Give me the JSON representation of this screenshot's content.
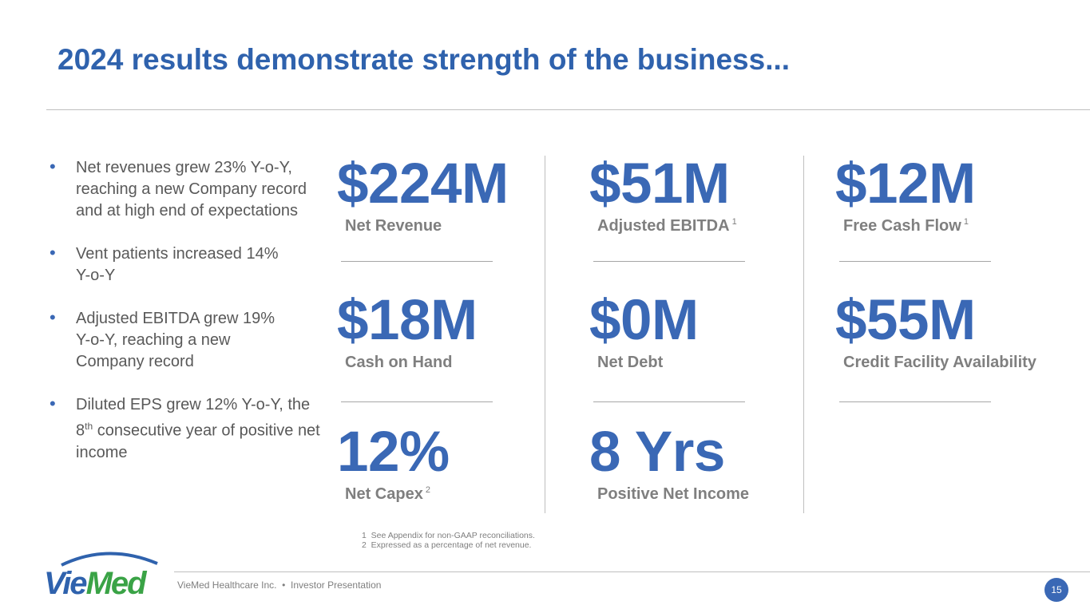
{
  "title": "2024 results demonstrate strength of the business...",
  "bullets": [
    {
      "text": "Net revenues grew 23% Y-o-Y, reaching a new Company record and at high end of expectations"
    },
    {
      "text": "Vent patients increased 14% Y-o-Y"
    },
    {
      "text": "Adjusted EBITDA grew 19% Y-o-Y, reaching a new Company record"
    },
    {
      "pre": "Diluted EPS grew 12% Y-o-Y, the 8",
      "sup": "th",
      "post": " consecutive year of positive net income"
    }
  ],
  "metrics": [
    {
      "value": "$224M",
      "label": "Net Revenue",
      "note": ""
    },
    {
      "value": "$51M",
      "label": "Adjusted EBITDA",
      "note": "1"
    },
    {
      "value": "$12M",
      "label": "Free Cash Flow",
      "note": "1"
    },
    {
      "value": "$18M",
      "label": "Cash on Hand",
      "note": ""
    },
    {
      "value": "$0M",
      "label": "Net Debt",
      "note": ""
    },
    {
      "value": "$55M",
      "label": "Credit Facility Availability",
      "note": ""
    },
    {
      "value": "12%",
      "label": "Net Capex",
      "note": "2"
    },
    {
      "value": "8 Yrs",
      "label": "Positive Net Income",
      "note": ""
    }
  ],
  "footnotes": [
    "1  See Appendix for non-GAAP reconciliations.",
    "2  Expressed as a percentage of net revenue."
  ],
  "footer": {
    "logo": "VieMed",
    "text": "VieMed Healthcare Inc.  •  Investor Presentation",
    "page": "15"
  },
  "colors": {
    "title": "#2f62ad",
    "accent": "#3a68b5",
    "logo_green": "#3aa346"
  }
}
